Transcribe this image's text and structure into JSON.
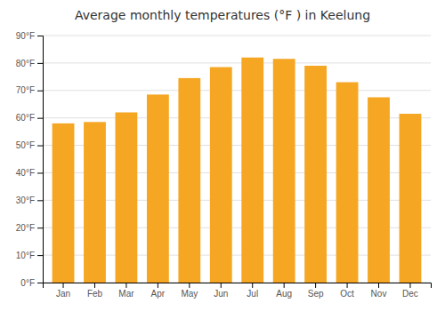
{
  "chart_data": {
    "type": "bar",
    "title": "Average monthly temperatures (°F ) in Keelung",
    "categories": [
      "Jan",
      "Feb",
      "Mar",
      "Apr",
      "May",
      "Jun",
      "Jul",
      "Aug",
      "Sep",
      "Oct",
      "Nov",
      "Dec"
    ],
    "values": [
      58,
      58.5,
      62,
      68.5,
      74.5,
      78.5,
      82,
      81.5,
      79,
      73,
      67.5,
      61.5
    ],
    "color": "#F5A623",
    "ylim": [
      0,
      90
    ],
    "yticks": [
      {
        "value": 0,
        "label": "0°F"
      },
      {
        "value": 10,
        "label": "10°F"
      },
      {
        "value": 20,
        "label": "20°F"
      },
      {
        "value": 30,
        "label": "30°F"
      },
      {
        "value": 40,
        "label": "40°F"
      },
      {
        "value": 50,
        "label": "50°F"
      },
      {
        "value": 60,
        "label": "60°F"
      },
      {
        "value": 70,
        "label": "70°F"
      },
      {
        "value": 80,
        "label": "80°F"
      },
      {
        "value": 90,
        "label": "90°F"
      }
    ],
    "grid": true
  }
}
